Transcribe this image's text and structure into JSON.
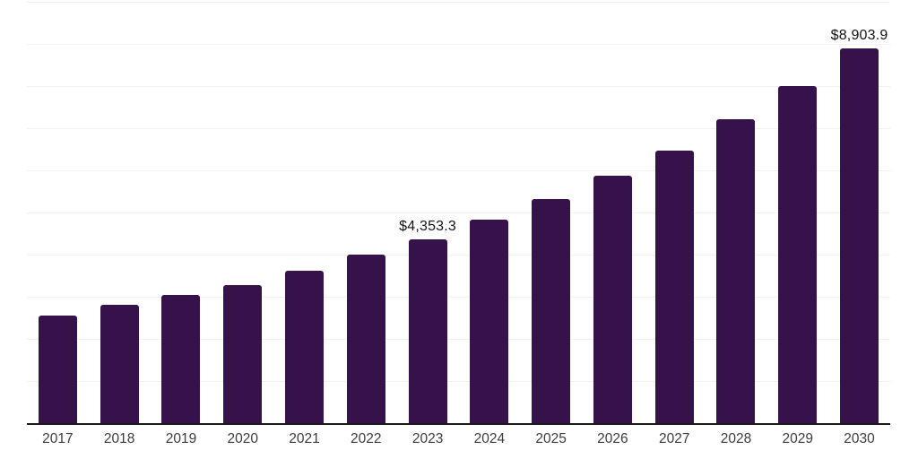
{
  "chart_data": {
    "type": "bar",
    "title": "",
    "xlabel": "",
    "ylabel": "",
    "categories": [
      "2017",
      "2018",
      "2019",
      "2020",
      "2021",
      "2022",
      "2023",
      "2024",
      "2025",
      "2026",
      "2027",
      "2028",
      "2029",
      "2030"
    ],
    "values": [
      2550,
      2800,
      3050,
      3280,
      3620,
      3990,
      4353.3,
      4820,
      5320,
      5880,
      6470,
      7210,
      7990,
      8903.9
    ],
    "data_labels": {
      "2023": "$4,353.3",
      "2030": "$8,903.9"
    },
    "ylim": [
      0,
      10000
    ],
    "grid_step": 1000,
    "grid": true,
    "legend": false,
    "bar_color": "#35124A",
    "axis_color": "#1a1a1a",
    "gridline_color": "#f1f1f3",
    "tick_label_color": "#3c3c3c",
    "value_label_color": "#121212"
  }
}
